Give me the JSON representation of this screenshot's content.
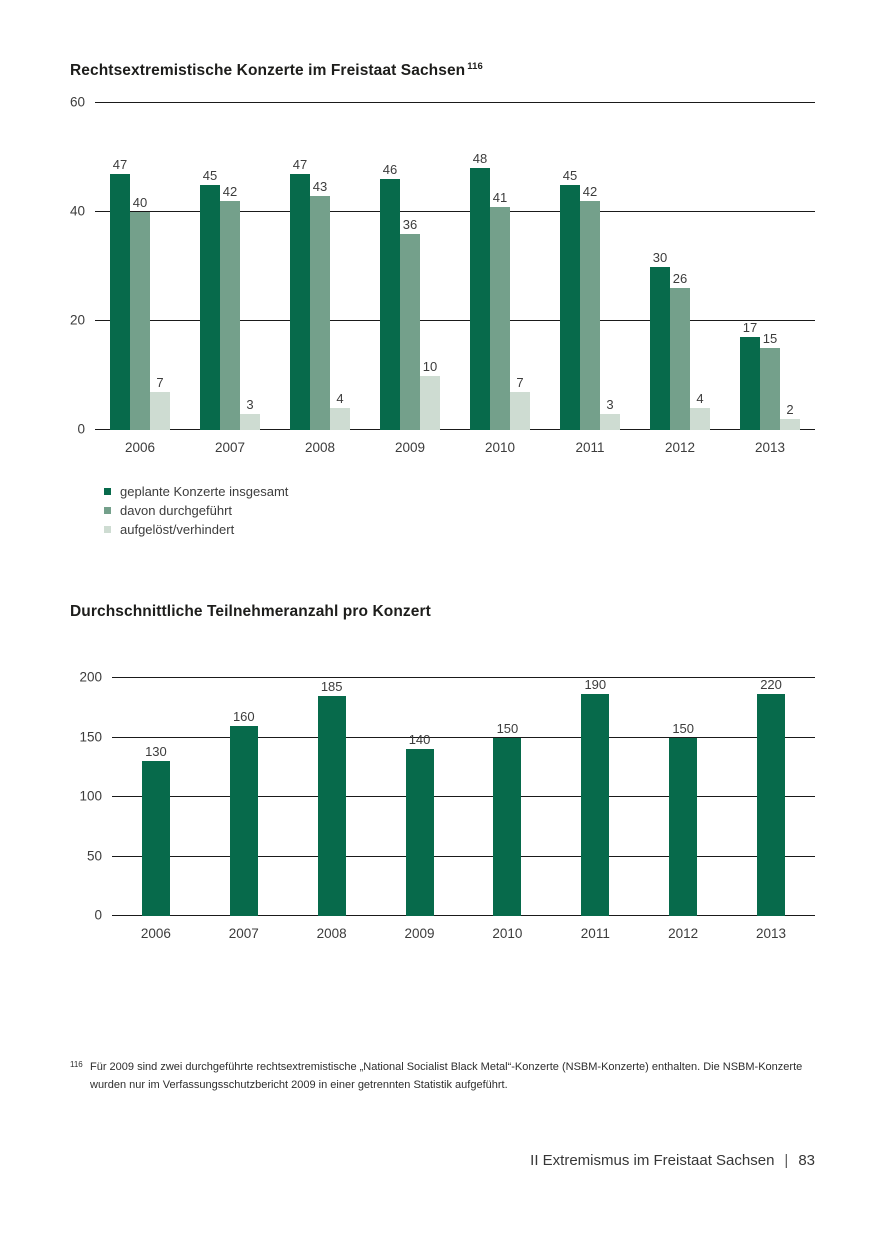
{
  "colors": {
    "series_dark_green": "#076a4b",
    "series_medium_green": "#74a08b",
    "series_light_green": "#cedcd2",
    "gridline": "#1a1a1a",
    "text": "#3c3c3c"
  },
  "chart_data": [
    {
      "type": "bar",
      "title": "Rechtsextremistische Konzerte im Freistaat Sachsen",
      "title_footnote_marker": "116",
      "categories": [
        "2006",
        "2007",
        "2008",
        "2009",
        "2010",
        "2011",
        "2012",
        "2013"
      ],
      "series": [
        {
          "name": "geplante Konzerte insgesamt",
          "color": "#076a4b",
          "values": [
            47,
            45,
            47,
            46,
            48,
            45,
            30,
            17
          ]
        },
        {
          "name": "davon durchgeführt",
          "color": "#74a08b",
          "values": [
            40,
            42,
            43,
            36,
            41,
            42,
            26,
            15
          ]
        },
        {
          "name": "aufgelöst/verhindert",
          "color": "#cedcd2",
          "values": [
            7,
            3,
            4,
            10,
            7,
            3,
            4,
            2
          ]
        }
      ],
      "ylim": [
        0,
        60
      ],
      "yticks": [
        0,
        20,
        40,
        60
      ],
      "grid": true,
      "legend_position": "bottom-left",
      "value_labels": true
    },
    {
      "type": "bar",
      "title": "Durchschnittliche Teilnehmeranzahl pro Konzert",
      "categories": [
        "2006",
        "2007",
        "2008",
        "2009",
        "2010",
        "2011",
        "2012",
        "2013"
      ],
      "series": [
        {
          "name": "Durchschnittliche Teilnehmeranzahl",
          "color": "#076a4b",
          "values": [
            130,
            160,
            185,
            140,
            150,
            190,
            150,
            220
          ]
        }
      ],
      "ylim": [
        0,
        200
      ],
      "yticks": [
        0,
        50,
        100,
        150,
        200
      ],
      "grid": true,
      "legend_position": "none",
      "value_labels": true
    }
  ],
  "footnote": {
    "marker": "116",
    "text": "Für 2009 sind zwei durchgeführte rechtsextremistische „National Socialist Black Metal“-Konzerte (NSBM-Konzerte) enthalten. Die NSBM-Konzerte wurden nur im Verfassungsschutzbericht 2009 in einer getrennten Statistik aufgeführt."
  },
  "footer": {
    "section_title": "II Extremismus im Freistaat Sachsen",
    "separator": "|",
    "page_number": "83"
  }
}
